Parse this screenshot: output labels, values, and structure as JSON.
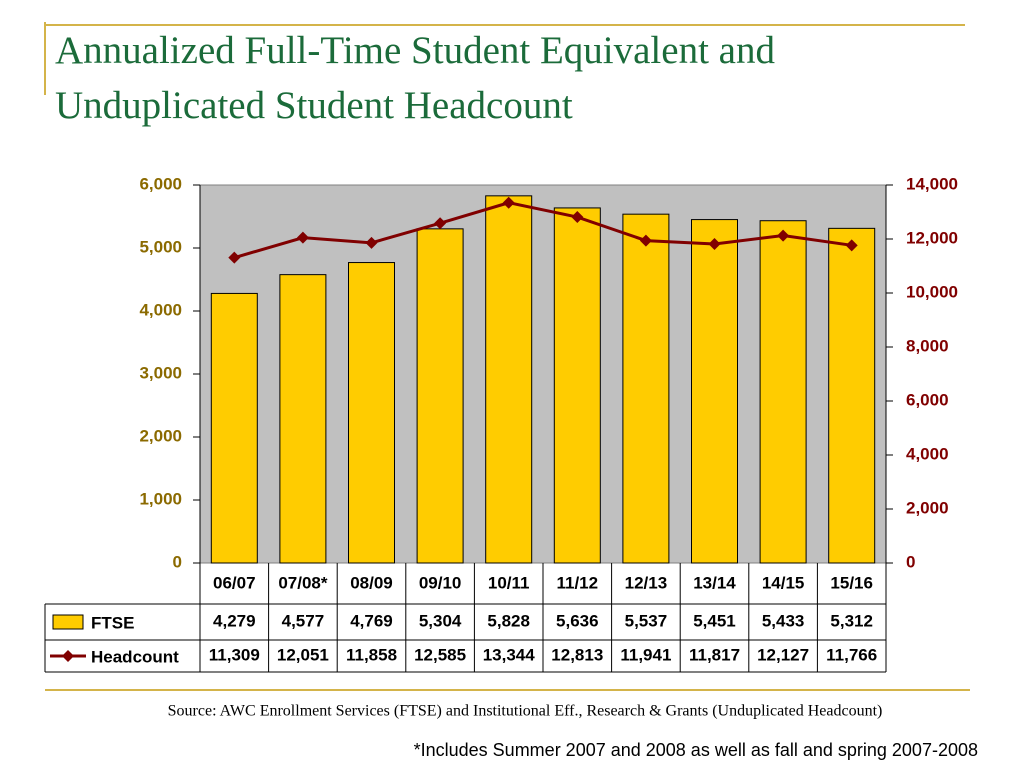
{
  "chart_data": {
    "type": "bar",
    "title": "Annualized Full-Time Student Equivalent and Unduplicated Student Headcount",
    "categories": [
      "06/07",
      "07/08*",
      "08/09",
      "09/10",
      "10/11",
      "11/12",
      "12/13",
      "13/14",
      "14/15",
      "15/16"
    ],
    "series": [
      {
        "name": "FTSE",
        "type": "bar",
        "color": "#FFCC00",
        "values": [
          4279,
          4577,
          4769,
          5304,
          5828,
          5636,
          5537,
          5451,
          5433,
          5312
        ],
        "value_labels": [
          "4,279",
          "4,577",
          "4,769",
          "5,304",
          "5,828",
          "5,636",
          "5,537",
          "5,451",
          "5,433",
          "5,312"
        ]
      },
      {
        "name": "Headcount",
        "type": "line",
        "axis": "y2",
        "color": "#800000",
        "values": [
          11309,
          12051,
          11858,
          12585,
          13344,
          12813,
          11941,
          11817,
          12127,
          11766
        ],
        "value_labels": [
          "11,309",
          "12,051",
          "11,858",
          "12,585",
          "13,344",
          "12,813",
          "11,941",
          "11,817",
          "12,127",
          "11,766"
        ]
      }
    ],
    "ylim": [
      0,
      6000
    ],
    "yticks": [
      0,
      {
        "value": 1000,
        "label": "1,000"
      },
      {
        "value": 2000,
        "label": "2,000"
      },
      {
        "value": 3000,
        "label": "3,000"
      },
      {
        "value": 4000,
        "label": "4,000"
      },
      {
        "value": 5000,
        "label": "5,000"
      },
      {
        "value": 6000,
        "label": "6,000"
      }
    ],
    "y2lim": [
      0,
      14000
    ],
    "y2ticks": [
      0,
      {
        "value": 2000,
        "label": "2,000"
      },
      {
        "value": 4000,
        "label": "4,000"
      },
      {
        "value": 6000,
        "label": "6,000"
      },
      {
        "value": 8000,
        "label": "8,000"
      },
      {
        "value": 10000,
        "label": "10,000"
      },
      {
        "value": 12000,
        "label": "12,000"
      },
      {
        "value": 14000,
        "label": "14,000"
      }
    ],
    "plot_background": "#C0C0C0",
    "source": "Source: AWC Enrollment Services (FTSE) and Institutional Eff., Research & Grants (Unduplicated Headcount)",
    "footnote": "*Includes Summer 2007 and 2008 as well as fall and spring 2007-2008"
  }
}
